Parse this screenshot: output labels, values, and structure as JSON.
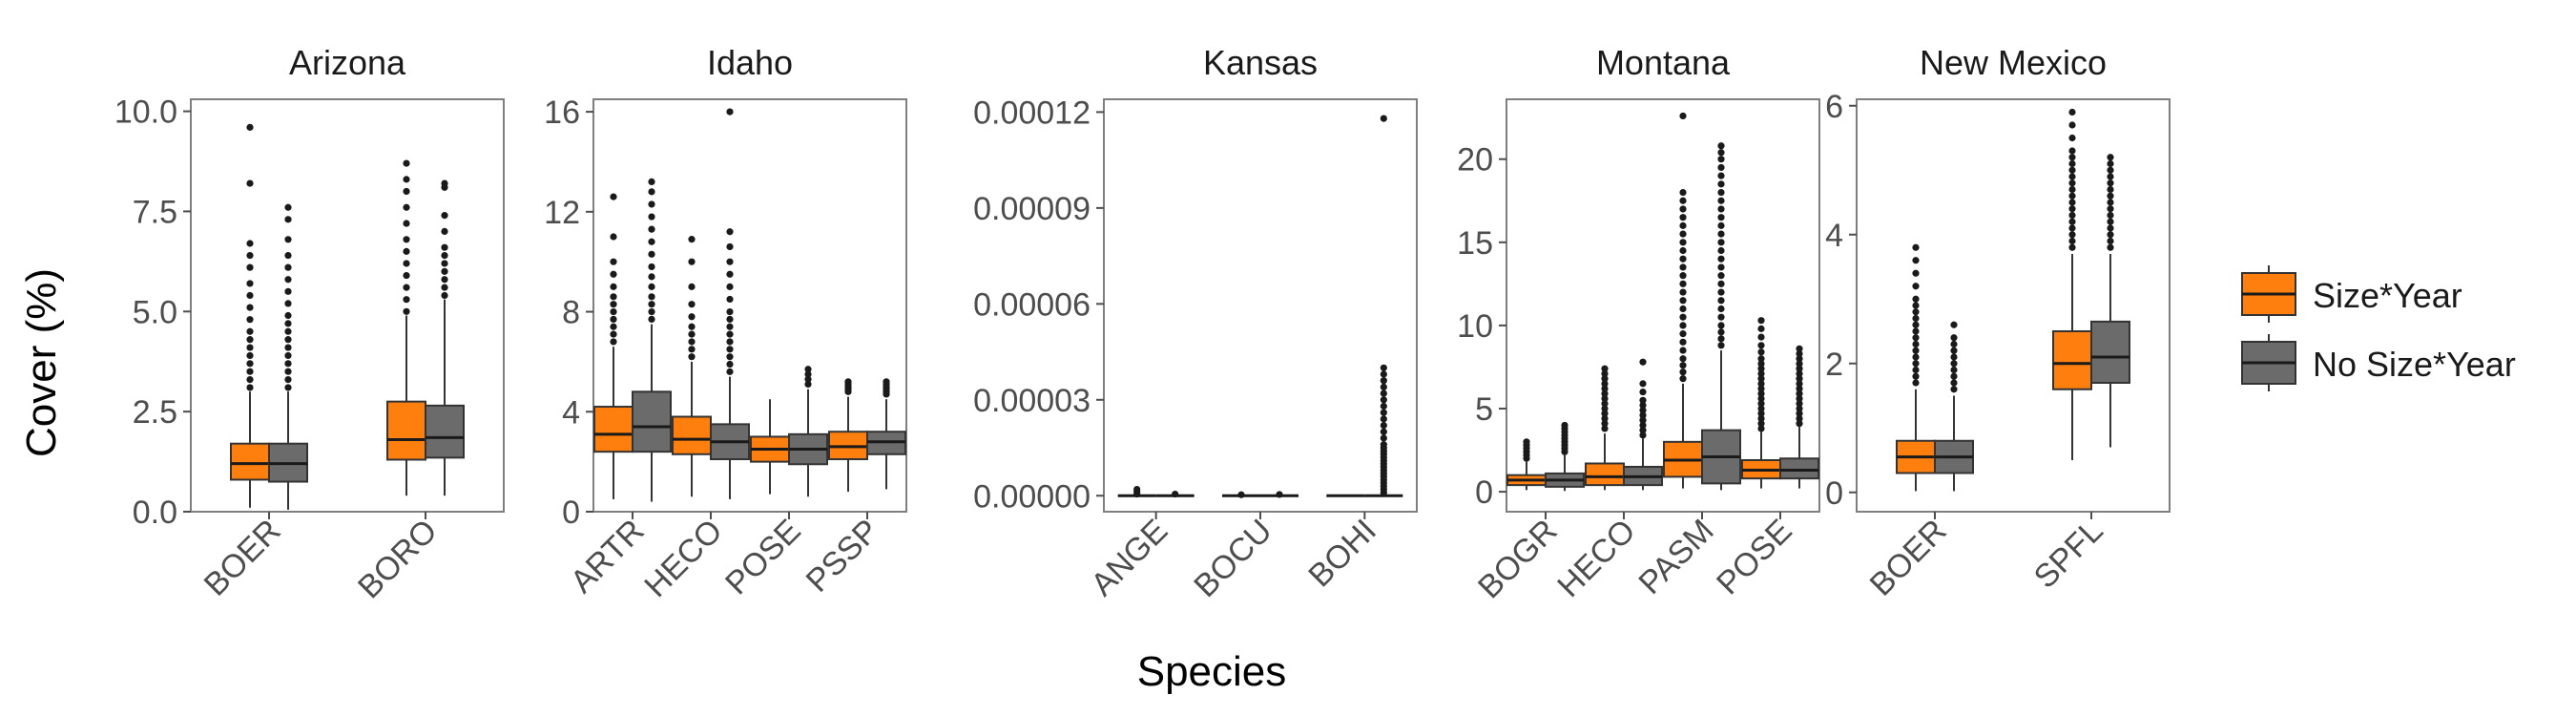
{
  "chart_data": {
    "type": "boxplot",
    "xlabel": "Species",
    "ylabel": "Cover (%)",
    "legend": {
      "placement": "right",
      "entries": [
        {
          "name": "Size*Year",
          "color": "#FF7F0E"
        },
        {
          "name": "No Size*Year",
          "color": "#6B6B6B"
        }
      ]
    },
    "panels": [
      {
        "title": "Arizona",
        "ylim": [
          0,
          10.3
        ],
        "yticks": [
          0,
          2.5,
          5,
          7.5,
          10
        ],
        "ytick_labels": [
          "0.0",
          "2.5",
          "5.0",
          "7.5",
          "10.0"
        ],
        "categories": [
          "BOER",
          "BORO"
        ],
        "series": [
          {
            "name": "Size*Year",
            "boxes": [
              {
                "category": "BOER",
                "lower_whisker": 0.1,
                "q1": 0.8,
                "median": 1.2,
                "q3": 1.7,
                "upper_whisker": 3.0,
                "outliers": [
                  3.1,
                  3.3,
                  3.5,
                  3.7,
                  3.9,
                  4.1,
                  4.3,
                  4.5,
                  4.8,
                  5.1,
                  5.4,
                  5.7,
                  6.1,
                  6.4,
                  6.7,
                  8.2,
                  9.6
                ]
              },
              {
                "category": "BORO",
                "lower_whisker": 0.4,
                "q1": 1.3,
                "median": 1.8,
                "q3": 2.75,
                "upper_whisker": 4.9,
                "outliers": [
                  5.0,
                  5.3,
                  5.6,
                  5.9,
                  6.2,
                  6.5,
                  6.8,
                  7.2,
                  7.6,
                  8.0,
                  8.3,
                  8.7
                ]
              }
            ]
          },
          {
            "name": "No Size*Year",
            "boxes": [
              {
                "category": "BOER",
                "lower_whisker": 0.05,
                "q1": 0.75,
                "median": 1.2,
                "q3": 1.7,
                "upper_whisker": 3.0,
                "outliers": [
                  3.1,
                  3.3,
                  3.5,
                  3.7,
                  3.9,
                  4.1,
                  4.3,
                  4.5,
                  4.7,
                  4.9,
                  5.2,
                  5.5,
                  5.8,
                  6.1,
                  6.4,
                  6.8,
                  7.3,
                  7.6
                ]
              },
              {
                "category": "BORO",
                "lower_whisker": 0.4,
                "q1": 1.35,
                "median": 1.85,
                "q3": 2.65,
                "upper_whisker": 5.3,
                "outliers": [
                  5.4,
                  5.6,
                  5.8,
                  6.0,
                  6.2,
                  6.4,
                  6.6,
                  7.0,
                  7.4,
                  8.1,
                  8.2
                ]
              }
            ]
          }
        ]
      },
      {
        "title": "Idaho",
        "ylim": [
          0,
          16.5
        ],
        "yticks": [
          0,
          4,
          8,
          12,
          16
        ],
        "ytick_labels": [
          "0",
          "4",
          "8",
          "12",
          "16"
        ],
        "categories": [
          "ARTR",
          "HECO",
          "POSE",
          "PSSP"
        ],
        "series": [
          {
            "name": "Size*Year",
            "boxes": [
              {
                "category": "ARTR",
                "lower_whisker": 0.5,
                "q1": 2.4,
                "median": 3.1,
                "q3": 4.2,
                "upper_whisker": 6.6,
                "outliers": [
                  6.8,
                  7.1,
                  7.4,
                  7.7,
                  8.0,
                  8.3,
                  8.6,
                  9.0,
                  9.5,
                  10.0,
                  11.0,
                  12.6
                ]
              },
              {
                "category": "HECO",
                "lower_whisker": 0.6,
                "q1": 2.3,
                "median": 2.9,
                "q3": 3.8,
                "upper_whisker": 6.0,
                "outliers": [
                  6.2,
                  6.5,
                  6.8,
                  7.1,
                  7.4,
                  7.8,
                  8.3,
                  9.0,
                  10.0,
                  10.9
                ]
              },
              {
                "category": "POSE",
                "lower_whisker": 0.7,
                "q1": 2.0,
                "median": 2.5,
                "q3": 3.0,
                "upper_whisker": 4.5,
                "outliers": []
              },
              {
                "category": "PSSP",
                "lower_whisker": 0.8,
                "q1": 2.1,
                "median": 2.6,
                "q3": 3.2,
                "upper_whisker": 4.6,
                "outliers": [
                  4.8,
                  4.9,
                  5.0,
                  5.1,
                  5.2
                ]
              }
            ]
          },
          {
            "name": "No Size*Year",
            "boxes": [
              {
                "category": "ARTR",
                "lower_whisker": 0.4,
                "q1": 2.4,
                "median": 3.4,
                "q3": 4.8,
                "upper_whisker": 7.5,
                "outliers": [
                  7.7,
                  8.0,
                  8.3,
                  8.6,
                  9.0,
                  9.4,
                  9.8,
                  10.3,
                  10.8,
                  11.3,
                  11.8,
                  12.3,
                  12.8,
                  13.2
                ]
              },
              {
                "category": "HECO",
                "lower_whisker": 0.5,
                "q1": 2.1,
                "median": 2.8,
                "q3": 3.5,
                "upper_whisker": 5.4,
                "outliers": [
                  5.6,
                  5.9,
                  6.2,
                  6.5,
                  6.8,
                  7.1,
                  7.4,
                  7.7,
                  8.0,
                  8.5,
                  9.0,
                  9.5,
                  10.0,
                  10.6,
                  11.2,
                  16.0
                ]
              },
              {
                "category": "POSE",
                "lower_whisker": 0.6,
                "q1": 1.9,
                "median": 2.5,
                "q3": 3.1,
                "upper_whisker": 4.9,
                "outliers": [
                  5.1,
                  5.3,
                  5.5,
                  5.7
                ]
              },
              {
                "category": "PSSP",
                "lower_whisker": 0.9,
                "q1": 2.3,
                "median": 2.8,
                "q3": 3.2,
                "upper_whisker": 4.5,
                "outliers": [
                  4.7,
                  4.8,
                  4.9,
                  5.0,
                  5.1,
                  5.2
                ]
              }
            ]
          }
        ]
      },
      {
        "title": "Kansas",
        "ylim": [
          -5e-06,
          0.000124
        ],
        "yticks": [
          0,
          3e-05,
          6e-05,
          9e-05,
          0.00012
        ],
        "ytick_labels": [
          "0.00000",
          "0.00003",
          "0.00006",
          "0.00009",
          "0.00012"
        ],
        "categories": [
          "ANGE",
          "BOCU",
          "BOHI"
        ],
        "series": [
          {
            "name": "Size*Year",
            "boxes": [
              {
                "category": "ANGE",
                "lower_whisker": 0,
                "q1": 0,
                "median": 0,
                "q3": 0,
                "upper_whisker": 0,
                "outliers": [
                  5e-07,
                  1.2e-06,
                  2e-06
                ]
              },
              {
                "category": "BOCU",
                "lower_whisker": 0,
                "q1": 0,
                "median": 0,
                "q3": 0,
                "upper_whisker": 0,
                "outliers": [
                  3e-07
                ]
              },
              {
                "category": "BOHI",
                "lower_whisker": 0,
                "q1": 0,
                "median": 0,
                "q3": 0,
                "upper_whisker": 0,
                "outliers": []
              }
            ]
          },
          {
            "name": "No Size*Year",
            "boxes": [
              {
                "category": "ANGE",
                "lower_whisker": 0,
                "q1": 0,
                "median": 0,
                "q3": 0,
                "upper_whisker": 0,
                "outliers": [
                  5e-07
                ]
              },
              {
                "category": "BOCU",
                "lower_whisker": 0,
                "q1": 0,
                "median": 0,
                "q3": 0,
                "upper_whisker": 0,
                "outliers": [
                  4e-07
                ]
              },
              {
                "category": "BOHI",
                "lower_whisker": 0,
                "q1": 0,
                "median": 0,
                "q3": 0,
                "upper_whisker": 0,
                "outliers": [
                  1e-06,
                  2e-06,
                  3e-06,
                  4e-06,
                  5e-06,
                  6e-06,
                  7e-06,
                  8e-06,
                  9e-06,
                  1e-05,
                  1.1e-05,
                  1.2e-05,
                  1.3e-05,
                  1.4e-05,
                  1.5e-05,
                  1.6e-05,
                  1.8e-05,
                  2e-05,
                  2.2e-05,
                  2.4e-05,
                  2.6e-05,
                  2.8e-05,
                  3e-05,
                  3.2e-05,
                  3.4e-05,
                  3.6e-05,
                  3.8e-05,
                  4e-05,
                  0.000118
                ]
              }
            ]
          }
        ]
      },
      {
        "title": "Montana",
        "ylim": [
          -1.2,
          23.6
        ],
        "yticks": [
          0,
          5,
          10,
          15,
          20
        ],
        "ytick_labels": [
          "0",
          "5",
          "10",
          "15",
          "20"
        ],
        "categories": [
          "BOGR",
          "HECO",
          "PASM",
          "POSE"
        ],
        "series": [
          {
            "name": "Size*Year",
            "boxes": [
              {
                "category": "BOGR",
                "lower_whisker": 0.1,
                "q1": 0.4,
                "median": 0.7,
                "q3": 1.0,
                "upper_whisker": 1.8,
                "outliers": [
                  2.0,
                  2.2,
                  2.4,
                  2.6,
                  2.8,
                  3.0
                ]
              },
              {
                "category": "HECO",
                "lower_whisker": 0.1,
                "q1": 0.4,
                "median": 0.9,
                "q3": 1.7,
                "upper_whisker": 3.5,
                "outliers": [
                  3.8,
                  4.1,
                  4.4,
                  4.7,
                  5.0,
                  5.3,
                  5.6,
                  5.9,
                  6.2,
                  6.5,
                  6.8,
                  7.1,
                  7.4
                ]
              },
              {
                "category": "PASM",
                "lower_whisker": 0.2,
                "q1": 0.9,
                "median": 1.9,
                "q3": 3.0,
                "upper_whisker": 6.5,
                "outliers": [
                  6.8,
                  7.2,
                  7.6,
                  8.0,
                  8.5,
                  9.0,
                  9.5,
                  10.0,
                  10.5,
                  11.0,
                  11.5,
                  12.0,
                  12.5,
                  13.0,
                  13.5,
                  14.0,
                  14.5,
                  15.0,
                  15.5,
                  16.0,
                  16.5,
                  17.0,
                  17.5,
                  18.0,
                  22.6
                ]
              },
              {
                "category": "POSE",
                "lower_whisker": 0.2,
                "q1": 0.8,
                "median": 1.3,
                "q3": 1.9,
                "upper_whisker": 3.6,
                "outliers": [
                  3.8,
                  4.1,
                  4.4,
                  4.7,
                  5.0,
                  5.3,
                  5.6,
                  5.9,
                  6.2,
                  6.5,
                  6.8,
                  7.1,
                  7.4,
                  7.7,
                  8.0,
                  8.4,
                  8.8,
                  9.3,
                  9.8,
                  10.3
                ]
              }
            ]
          },
          {
            "name": "No Size*Year",
            "boxes": [
              {
                "category": "BOGR",
                "lower_whisker": 0.05,
                "q1": 0.3,
                "median": 0.7,
                "q3": 1.1,
                "upper_whisker": 2.2,
                "outliers": [
                  2.4,
                  2.6,
                  2.8,
                  3.0,
                  3.2,
                  3.4,
                  3.6,
                  3.8,
                  4.0
                ]
              },
              {
                "category": "HECO",
                "lower_whisker": 0.1,
                "q1": 0.4,
                "median": 0.9,
                "q3": 1.5,
                "upper_whisker": 3.2,
                "outliers": [
                  3.4,
                  3.7,
                  4.0,
                  4.3,
                  4.6,
                  4.9,
                  5.2,
                  5.5,
                  6.0,
                  6.5,
                  7.8
                ]
              },
              {
                "category": "PASM",
                "lower_whisker": 0.1,
                "q1": 0.5,
                "median": 2.1,
                "q3": 3.7,
                "upper_whisker": 8.5,
                "outliers": [
                  8.8,
                  9.2,
                  9.6,
                  10.0,
                  10.5,
                  11.0,
                  11.5,
                  12.0,
                  12.5,
                  13.0,
                  13.5,
                  14.0,
                  14.5,
                  15.0,
                  15.5,
                  16.0,
                  16.5,
                  17.0,
                  17.5,
                  18.0,
                  18.5,
                  19.0,
                  19.5,
                  20.0,
                  20.4,
                  20.8
                ]
              },
              {
                "category": "POSE",
                "lower_whisker": 0.2,
                "q1": 0.8,
                "median": 1.3,
                "q3": 2.0,
                "upper_whisker": 3.9,
                "outliers": [
                  4.1,
                  4.4,
                  4.7,
                  5.0,
                  5.3,
                  5.6,
                  5.9,
                  6.2,
                  6.5,
                  6.8,
                  7.1,
                  7.4,
                  7.7,
                  8.0,
                  8.3,
                  8.6
                ]
              }
            ]
          }
        ]
      },
      {
        "title": "New Mexico",
        "ylim": [
          -0.3,
          6.1
        ],
        "yticks": [
          0,
          2,
          4,
          6
        ],
        "ytick_labels": [
          "0",
          "2",
          "4",
          "6"
        ],
        "categories": [
          "BOER",
          "SPFL"
        ],
        "series": [
          {
            "name": "Size*Year",
            "boxes": [
              {
                "category": "BOER",
                "lower_whisker": 0.02,
                "q1": 0.3,
                "median": 0.55,
                "q3": 0.8,
                "upper_whisker": 1.6,
                "outliers": [
                  1.7,
                  1.8,
                  1.9,
                  2.0,
                  2.1,
                  2.2,
                  2.3,
                  2.4,
                  2.5,
                  2.6,
                  2.7,
                  2.8,
                  2.9,
                  3.0,
                  3.2,
                  3.4,
                  3.6,
                  3.8
                ]
              },
              {
                "category": "SPFL",
                "lower_whisker": 0.5,
                "q1": 1.6,
                "median": 2.0,
                "q3": 2.5,
                "upper_whisker": 3.7,
                "outliers": [
                  3.8,
                  3.9,
                  4.0,
                  4.1,
                  4.2,
                  4.3,
                  4.4,
                  4.5,
                  4.6,
                  4.7,
                  4.8,
                  4.9,
                  5.0,
                  5.1,
                  5.2,
                  5.3,
                  5.5,
                  5.7,
                  5.9
                ]
              }
            ]
          },
          {
            "name": "No Size*Year",
            "boxes": [
              {
                "category": "BOER",
                "lower_whisker": 0.02,
                "q1": 0.3,
                "median": 0.55,
                "q3": 0.8,
                "upper_whisker": 1.5,
                "outliers": [
                  1.6,
                  1.7,
                  1.8,
                  1.9,
                  2.0,
                  2.1,
                  2.2,
                  2.3,
                  2.4,
                  2.6
                ]
              },
              {
                "category": "SPFL",
                "lower_whisker": 0.7,
                "q1": 1.7,
                "median": 2.1,
                "q3": 2.65,
                "upper_whisker": 3.7,
                "outliers": [
                  3.8,
                  3.9,
                  4.0,
                  4.1,
                  4.2,
                  4.3,
                  4.4,
                  4.5,
                  4.6,
                  4.7,
                  4.8,
                  4.9,
                  5.0,
                  5.1,
                  5.2
                ]
              }
            ]
          }
        ]
      }
    ]
  }
}
